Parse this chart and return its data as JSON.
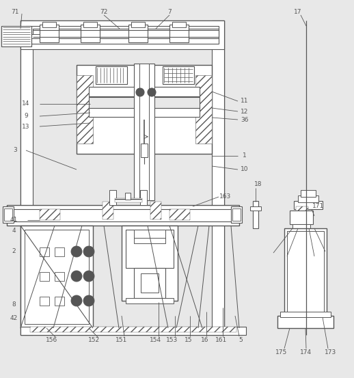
{
  "bg": "#e8e8e8",
  "lc": "#555555",
  "fw": 5.18,
  "fh": 5.53,
  "dpi": 100
}
